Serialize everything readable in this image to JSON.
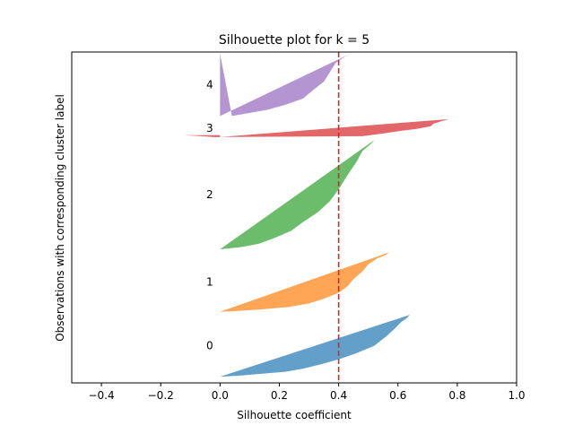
{
  "chart_data": {
    "type": "area",
    "title": "Silhouette plot for k = 5",
    "xlabel": "Silhouette coefficient",
    "ylabel": "Observations with corresponding cluster label",
    "xlim": [
      -0.5,
      1.0
    ],
    "ylim": [
      -10,
      1060
    ],
    "xticks": [
      -0.4,
      -0.2,
      0.0,
      0.2,
      0.4,
      0.6,
      0.8,
      1.0
    ],
    "xtick_labels": [
      "−0.4",
      "−0.2",
      "0.0",
      "0.2",
      "0.4",
      "0.6",
      "0.8",
      "1.0"
    ],
    "yticks": [],
    "grid": false,
    "mean_silhouette": 0.4,
    "mean_line_color": "#d62728",
    "clusters": [
      {
        "label": "0",
        "color": "#1f77b4",
        "y_start": 10,
        "y_end": 210,
        "profile": [
          [
            0,
            0.64
          ],
          [
            0.05,
            0.63
          ],
          [
            0.12,
            0.61
          ],
          [
            0.22,
            0.59
          ],
          [
            0.35,
            0.56
          ],
          [
            0.5,
            0.52
          ],
          [
            0.62,
            0.46
          ],
          [
            0.72,
            0.4
          ],
          [
            0.8,
            0.34
          ],
          [
            0.87,
            0.28
          ],
          [
            0.92,
            0.22
          ],
          [
            0.96,
            0.12
          ],
          [
            0.985,
            0.06
          ],
          [
            1.0,
            0.0
          ]
        ]
      },
      {
        "label": "1",
        "color": "#ff7f0e",
        "y_start": 220,
        "y_end": 412,
        "profile": [
          [
            0,
            0.57
          ],
          [
            0.04,
            0.56
          ],
          [
            0.1,
            0.53
          ],
          [
            0.2,
            0.5
          ],
          [
            0.32,
            0.48
          ],
          [
            0.45,
            0.45
          ],
          [
            0.57,
            0.43
          ],
          [
            0.68,
            0.4
          ],
          [
            0.78,
            0.35
          ],
          [
            0.86,
            0.3
          ],
          [
            0.92,
            0.23
          ],
          [
            0.96,
            0.14
          ],
          [
            0.985,
            0.06
          ],
          [
            1.0,
            0.0
          ]
        ]
      },
      {
        "label": "2",
        "color": "#2ca02c",
        "y_start": 422,
        "y_end": 775,
        "profile": [
          [
            0,
            0.52
          ],
          [
            0.03,
            0.51
          ],
          [
            0.1,
            0.48
          ],
          [
            0.2,
            0.46
          ],
          [
            0.32,
            0.43
          ],
          [
            0.45,
            0.4
          ],
          [
            0.56,
            0.37
          ],
          [
            0.66,
            0.33
          ],
          [
            0.75,
            0.28
          ],
          [
            0.83,
            0.24
          ],
          [
            0.9,
            0.18
          ],
          [
            0.95,
            0.13
          ],
          [
            0.98,
            0.07
          ],
          [
            1.0,
            0.0
          ]
        ]
      },
      {
        "label": "3",
        "color": "#d62728",
        "y_start": 785,
        "y_end": 843,
        "profile": [
          [
            0,
            0.77
          ],
          [
            0.1,
            0.75
          ],
          [
            0.25,
            0.72
          ],
          [
            0.4,
            0.71
          ],
          [
            0.55,
            0.66
          ],
          [
            0.65,
            0.61
          ],
          [
            0.8,
            0.55
          ],
          [
            0.95,
            0.48
          ],
          [
            1.0,
            0.0
          ]
        ],
        "negative_sliver": [
          [
            0,
            -0.02
          ],
          [
            0.35,
            -0.05
          ],
          [
            0.7,
            -0.09
          ],
          [
            1.0,
            -0.12
          ]
        ]
      },
      {
        "label": "4",
        "color": "#9467bd",
        "y_start": 853,
        "y_end": 1055,
        "profile": [
          [
            0,
            0.44
          ],
          [
            0.05,
            0.42
          ],
          [
            0.15,
            0.39
          ],
          [
            0.3,
            0.37
          ],
          [
            0.45,
            0.35
          ],
          [
            0.6,
            0.31
          ],
          [
            0.72,
            0.28
          ],
          [
            0.82,
            0.22
          ],
          [
            0.9,
            0.16
          ],
          [
            0.95,
            0.1
          ],
          [
            1.0,
            0.04
          ]
        ]
      }
    ]
  }
}
